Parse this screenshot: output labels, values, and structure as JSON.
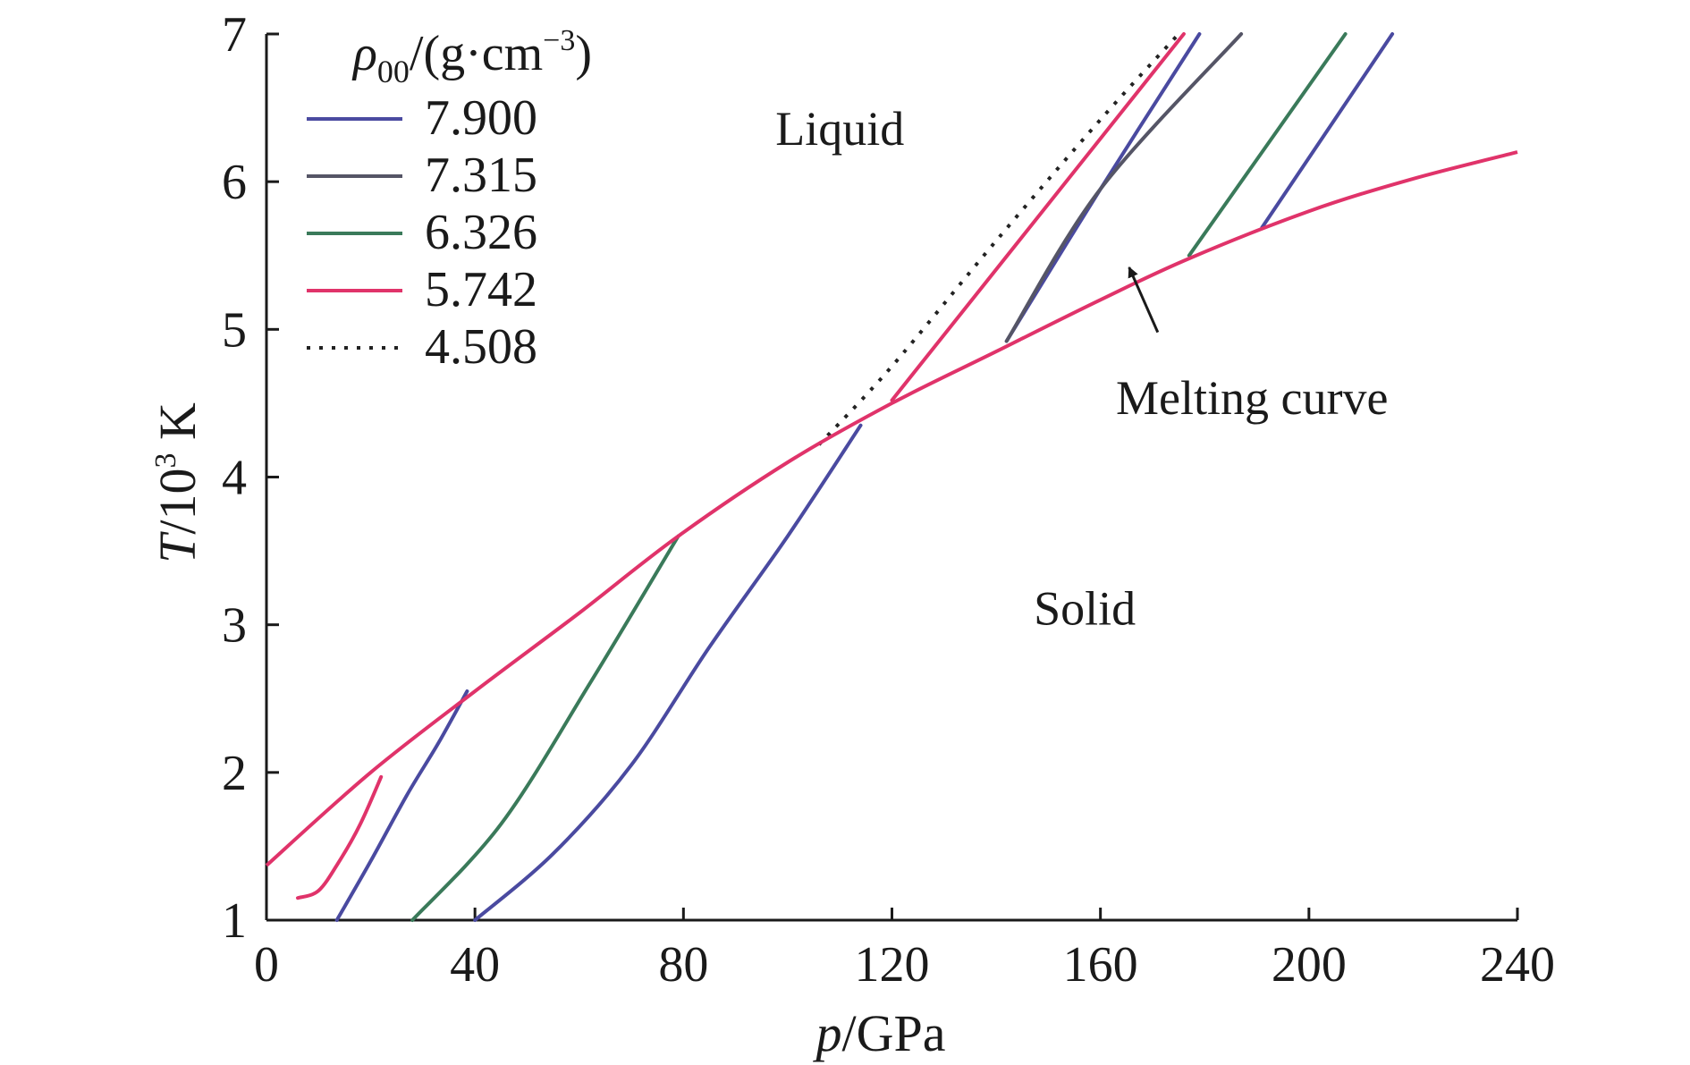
{
  "chart_data": {
    "type": "line",
    "title": "",
    "xlabel": {
      "var": "p",
      "unit": "/GPa"
    },
    "ylabel": {
      "var": "T",
      "unit": "/10",
      "sup": "3",
      "tail": " K"
    },
    "xlim": [
      0,
      240
    ],
    "ylim": [
      1,
      7
    ],
    "xticks": [
      0,
      40,
      80,
      120,
      160,
      200,
      240
    ],
    "yticks": [
      1,
      2,
      3,
      4,
      5,
      6,
      7
    ],
    "grid": false,
    "legend": {
      "title_var": "ρ",
      "title_sub": "00",
      "title_unit": "/(g·cm",
      "title_sup": "−3",
      "title_close": ")",
      "placement": "top-left"
    },
    "series": [
      {
        "name": "7.900",
        "color": "#4a4aa0",
        "dash": "none",
        "segments": [
          [
            [
              13.5,
              1.0
            ],
            [
              20,
              1.4
            ],
            [
              27,
              1.85
            ],
            [
              33,
              2.2
            ],
            [
              38.5,
              2.55
            ]
          ],
          [
            [
              40,
              1.0
            ],
            [
              55,
              1.45
            ],
            [
              70,
              2.05
            ],
            [
              85,
              2.85
            ],
            [
              100,
              3.6
            ],
            [
              114,
              4.35
            ]
          ],
          [
            [
              142,
              4.92
            ],
            [
              160,
              5.95
            ],
            [
              179,
              7.0
            ]
          ],
          [
            [
              191,
              5.69
            ],
            [
              216,
              7.0
            ]
          ]
        ]
      },
      {
        "name": "7.315",
        "color": "#555566",
        "dash": "none",
        "segments": [
          [
            [
              142,
              4.92
            ],
            [
              160,
              5.95
            ],
            [
              187,
              7.0
            ]
          ]
        ]
      },
      {
        "name": "6.326",
        "color": "#3a7a5a",
        "dash": "none",
        "segments": [
          [
            [
              28,
              1.0
            ],
            [
              45,
              1.65
            ],
            [
              62,
              2.6
            ],
            [
              79,
              3.6
            ]
          ],
          [
            [
              177,
              5.5
            ],
            [
              207,
              7.0
            ]
          ]
        ]
      },
      {
        "name": "5.742",
        "color": "#e0336a",
        "dash": "none",
        "segments": [
          [
            [
              6,
              1.15
            ],
            [
              10,
              1.2
            ],
            [
              14,
              1.4
            ],
            [
              18,
              1.65
            ],
            [
              22,
              1.97
            ]
          ],
          [
            [
              120,
              4.52
            ],
            [
              176,
              7.0
            ]
          ]
        ]
      },
      {
        "name": "4.508",
        "color": "#222222",
        "dash": "4,10",
        "segments": [
          [
            [
              106,
              4.22
            ],
            [
              120,
              4.75
            ],
            [
              140,
              5.6
            ],
            [
              160,
              6.42
            ],
            [
              175,
              7.0
            ]
          ]
        ]
      }
    ],
    "melting_curve": {
      "label": "Melting curve",
      "color": "#e0336a",
      "points": [
        [
          0,
          1.37
        ],
        [
          20,
          2.0
        ],
        [
          40,
          2.55
        ],
        [
          60,
          3.08
        ],
        [
          79,
          3.6
        ],
        [
          100,
          4.1
        ],
        [
          120,
          4.5
        ],
        [
          140,
          4.85
        ],
        [
          160,
          5.2
        ],
        [
          177,
          5.48
        ],
        [
          200,
          5.8
        ],
        [
          220,
          6.02
        ],
        [
          240,
          6.2
        ]
      ],
      "arrow_from": [
        171,
        4.98
      ],
      "arrow_to": [
        165.5,
        5.42
      ]
    },
    "annotations": [
      {
        "text": "Liquid",
        "x": 110,
        "y": 6.25
      },
      {
        "text": "Solid",
        "x": 157,
        "y": 3.0
      }
    ]
  }
}
